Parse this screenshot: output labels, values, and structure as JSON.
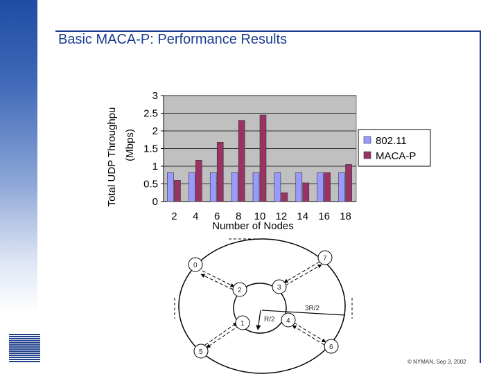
{
  "slide": {
    "title": "Basic MACA-P: Performance Results",
    "copyright": "© NYMAN, Sep 3, 2002"
  },
  "chart_data": {
    "type": "bar",
    "categories": [
      "2",
      "4",
      "6",
      "8",
      "10",
      "12",
      "14",
      "16",
      "18"
    ],
    "series": [
      {
        "name": "802.11",
        "color": "#9999ff",
        "values": [
          0.82,
          0.82,
          0.82,
          0.82,
          0.82,
          0.82,
          0.82,
          0.82,
          0.82
        ]
      },
      {
        "name": "MACA-P",
        "color": "#993366",
        "values": [
          0.6,
          1.17,
          1.68,
          2.3,
          2.45,
          0.25,
          0.53,
          0.82,
          1.05
        ]
      }
    ],
    "xlabel": "Number of Nodes",
    "ylabel_line1": "Total UDP Throughpu",
    "ylabel_line2": "(Mbps)",
    "ylim": [
      0,
      3
    ],
    "yticks": [
      0,
      0.5,
      1,
      1.5,
      2,
      2.5,
      3
    ],
    "ytick_labels": [
      "0",
      "0.5",
      "1",
      "1.5",
      "2",
      "2.5",
      "3"
    ],
    "grid": true,
    "plot_background": "#c0c0c0",
    "legend_position": "right"
  },
  "diagram": {
    "nodes": [
      "0",
      "1",
      "2",
      "3",
      "4",
      "5",
      "6",
      "7"
    ],
    "radius_labels": [
      "3R/2",
      "R/2"
    ]
  }
}
